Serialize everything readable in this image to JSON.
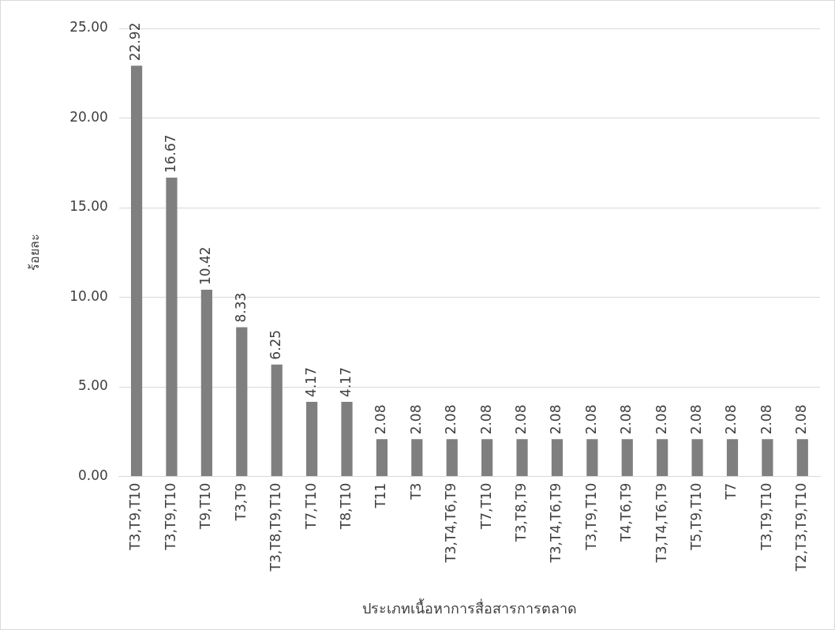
{
  "chart_data": {
    "type": "bar",
    "xlabel": "ประเภทเนื้อหาการสื่อสารการตลาด",
    "ylabel": "ร้อยละ",
    "categories": [
      "T3,T9,T10",
      "T3,T9,T10",
      "T9,T10",
      "T3,T9",
      "T3,T8,T9,T10",
      "T7,T10",
      "T8,T10",
      "T11",
      "T3",
      "T3,T4,T6,T9",
      "T7,T10",
      "T3,T8,T9",
      "T3,T4,T6,T9",
      "T3,T9,T10",
      "T4,T6,T9",
      "T3,T4,T6,T9",
      "T5,T9,T10",
      "T7",
      "T3,T9,T10",
      "T2,T3,T9,T10"
    ],
    "values": [
      22.92,
      16.67,
      10.42,
      8.33,
      6.25,
      4.17,
      4.17,
      2.08,
      2.08,
      2.08,
      2.08,
      2.08,
      2.08,
      2.08,
      2.08,
      2.08,
      2.08,
      2.08,
      2.08,
      2.08
    ],
    "color": "#7f7f7f",
    "ylim": [
      0,
      25
    ],
    "yticks": [
      {
        "value": 0,
        "label": "0.00"
      },
      {
        "value": 5,
        "label": "5.00"
      },
      {
        "value": 10,
        "label": "10.00"
      },
      {
        "value": 15,
        "label": "15.00"
      },
      {
        "value": 20,
        "label": "20.00"
      },
      {
        "value": 25,
        "label": "25.00"
      }
    ],
    "grid": "y",
    "legend": false,
    "data_labels": true
  }
}
